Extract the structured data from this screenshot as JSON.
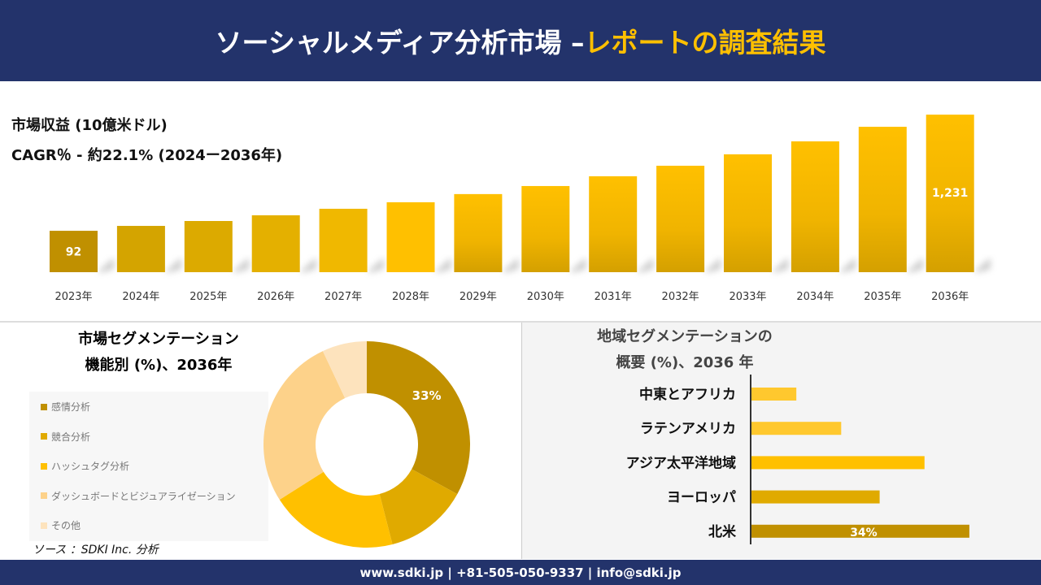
{
  "header": {
    "title_main": "ソーシャルメディア分析市場 –",
    "title_highlight": "レポートの調査結果"
  },
  "revenue": {
    "label": "市場収益 (10億米ドル)",
    "cagr": "CAGR％ - 約22.1% (2024ー2036年)"
  },
  "chart_data": [
    {
      "type": "bar",
      "title": "市場収益 (10億米ドル)",
      "categories": [
        "2023年",
        "2024年",
        "2025年",
        "2026年",
        "2027年",
        "2028年",
        "2029年",
        "2030年",
        "2031年",
        "2032年",
        "2033年",
        "2034年",
        "2035年",
        "2036年"
      ],
      "values": [
        92,
        140,
        188,
        244,
        308,
        372,
        452,
        531,
        627,
        730,
        842,
        969,
        1112,
        1231
      ],
      "data_labels": {
        "0": "92",
        "13": "1,231"
      },
      "colors": [
        "#c09000",
        "#d4a400",
        "#dcaa00",
        "#e4b000",
        "#f0b800",
        "#ffc000",
        "#ffc000",
        "#ffc000",
        "#ffc000",
        "#ffc000",
        "#ffc000",
        "#ffc000",
        "#ffc000",
        "#ffc000"
      ]
    },
    {
      "type": "pie",
      "title": "市場セグメンテーション 機能別 (%)、2036年",
      "donut": true,
      "categories": [
        "感情分析",
        "競合分析",
        "ハッシュタグ分析",
        "ダッシュボードとビジュアライゼーション",
        "その他"
      ],
      "values": [
        33,
        13,
        20,
        27,
        7
      ],
      "data_labels": {
        "0": "33%"
      },
      "colors": [
        "#c09000",
        "#e0aa00",
        "#ffc000",
        "#fdd28a",
        "#fde3bd"
      ]
    },
    {
      "type": "bar",
      "orientation": "horizontal",
      "title": "地域セグメンテーションの 概要 (%)、2036 年",
      "categories": [
        "中東とアフリカ",
        "ラテンアメリカ",
        "アジア太平洋地域",
        "ヨーロッパ",
        "北米"
      ],
      "values": [
        7,
        14,
        27,
        20,
        34
      ],
      "data_labels": {
        "4": "34%"
      },
      "colors": [
        "#ffc82e",
        "#ffc82e",
        "#ffc000",
        "#e0aa00",
        "#c09000"
      ]
    }
  ],
  "segment": {
    "title1": "市場セグメンテーション",
    "title2": "機能別 (%)、2036年"
  },
  "region": {
    "title1": "地域セグメンテーションの",
    "title2": "概要 (%)、2036 年"
  },
  "source": "ソース ：SDKI Inc. 分析",
  "footer": "www.sdki.jp | +81-505-050-9337 | info@sdki.jp"
}
